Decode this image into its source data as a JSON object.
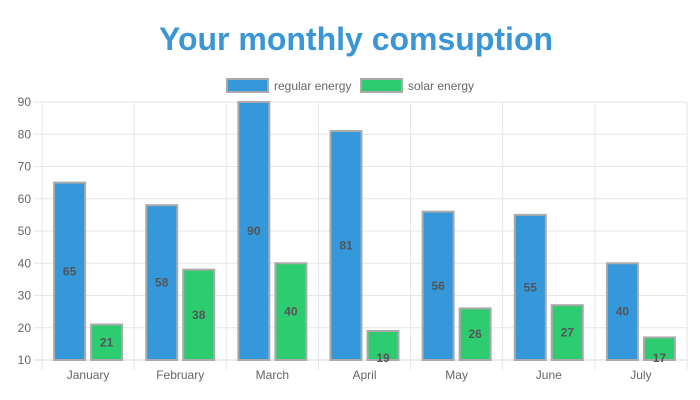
{
  "chart_data": {
    "type": "bar",
    "title": "Your monthly comsuption",
    "xlabel": "",
    "ylabel": "",
    "categories": [
      "January",
      "February",
      "March",
      "April",
      "May",
      "June",
      "July"
    ],
    "series": [
      {
        "name": "regular energy",
        "color": "#3498db",
        "values": [
          65,
          58,
          90,
          81,
          56,
          55,
          40
        ]
      },
      {
        "name": "solar energy",
        "color": "#2ecc71",
        "values": [
          21,
          38,
          40,
          19,
          26,
          27,
          17
        ]
      }
    ],
    "ylim": [
      10,
      90
    ],
    "yticks": [
      10,
      20,
      30,
      40,
      50,
      60,
      70,
      80,
      90
    ],
    "grid": true,
    "legend": "top-center",
    "border_color": "#aaaaaa",
    "title_color": "#3a96d4",
    "label_color": "#555555"
  }
}
